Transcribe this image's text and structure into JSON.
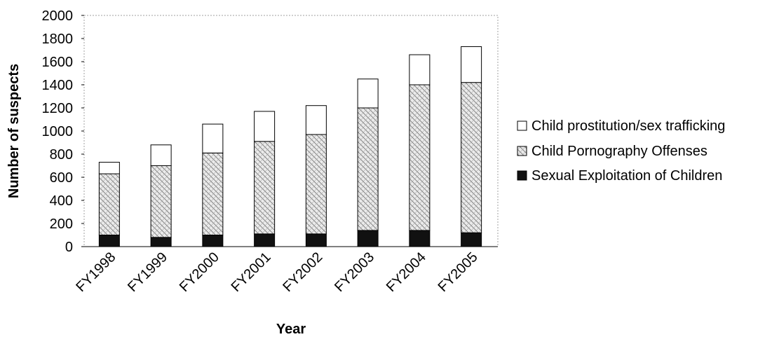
{
  "chart_data": {
    "type": "bar",
    "stacked": true,
    "categories": [
      "FY1998",
      "FY1999",
      "FY2000",
      "FY2001",
      "FY2002",
      "FY2003",
      "FY2004",
      "FY2005"
    ],
    "series": [
      {
        "name": "Sexual Exploitation of Children",
        "values": [
          100,
          80,
          100,
          110,
          110,
          140,
          140,
          120
        ],
        "fill": "solid-black"
      },
      {
        "name": "Child Pornography Offenses",
        "values": [
          530,
          620,
          710,
          800,
          860,
          1060,
          1260,
          1300
        ],
        "fill": "hatched-gray"
      },
      {
        "name": "Child prostitution/sex trafficking",
        "values": [
          100,
          180,
          250,
          260,
          250,
          250,
          260,
          310
        ],
        "fill": "white"
      }
    ],
    "legend_order": [
      "Child prostitution/sex trafficking",
      "Child Pornography Offenses",
      "Sexual Exploitation of Children"
    ],
    "xlabel": "Year",
    "ylabel": "Number of suspects",
    "ylim": [
      0,
      2000
    ],
    "yticks": [
      0,
      200,
      400,
      600,
      800,
      1000,
      1200,
      1400,
      1600,
      1800,
      2000
    ],
    "legend_position": "right",
    "grid": false,
    "colors": {
      "solid": "#111111",
      "hatch": "#8a8a8a",
      "open": "#ffffff",
      "border": "#000000"
    }
  }
}
